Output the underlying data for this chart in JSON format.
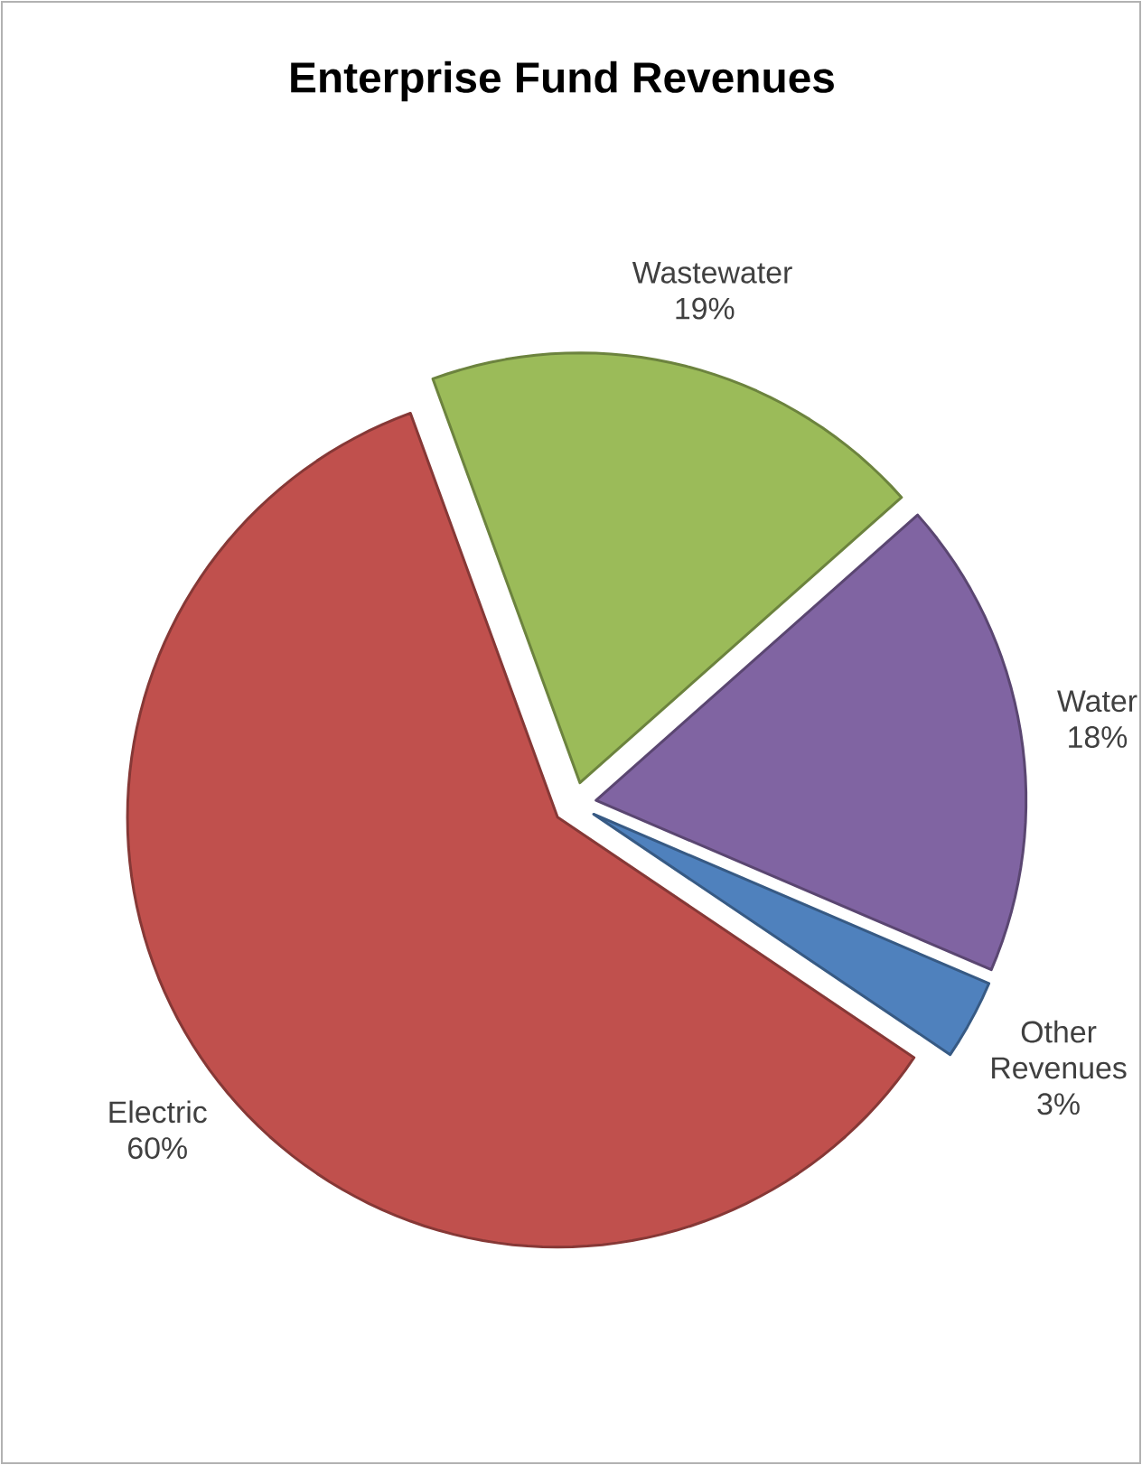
{
  "chart_data": {
    "type": "pie",
    "title": "Enterprise Fund Revenues",
    "categories": [
      "Wastewater",
      "Water",
      "Other Revenues",
      "Electric"
    ],
    "values": [
      19,
      18,
      3,
      60
    ],
    "value_labels": [
      "19%",
      "18%",
      "3%",
      "60%"
    ],
    "colors": [
      "#9bbb59",
      "#8064a2",
      "#4f81bd",
      "#c0504d"
    ],
    "data_labels": true
  }
}
